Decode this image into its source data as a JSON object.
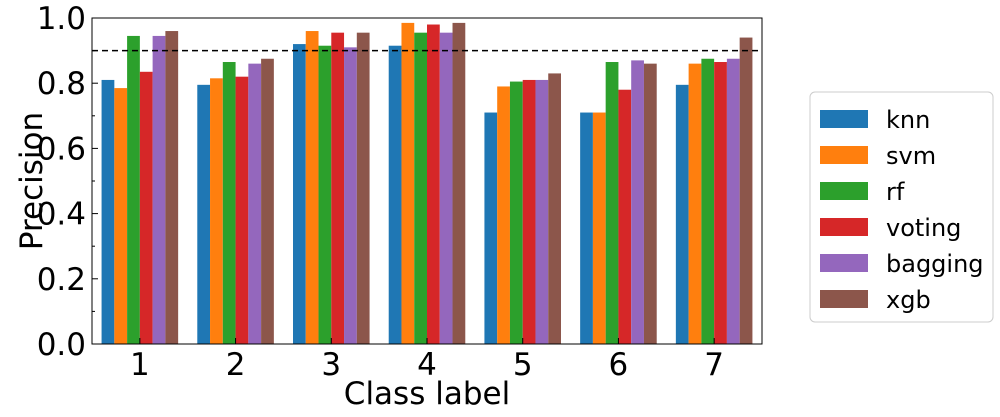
{
  "chart_data": {
    "type": "bar",
    "title": "",
    "xlabel": "Class label",
    "ylabel": "Precision",
    "categories": [
      "1",
      "2",
      "3",
      "4",
      "5",
      "6",
      "7"
    ],
    "ylim": [
      0,
      1.0
    ],
    "yticks": [
      "0.0",
      "0.2",
      "0.4",
      "0.6",
      "0.8",
      "1.0"
    ],
    "reference_line": {
      "y": 0.9,
      "style": "dashed",
      "color": "#000000"
    },
    "grid": false,
    "legend": {
      "placement": "right"
    },
    "series": [
      {
        "name": "knn",
        "color": "#1f77b4",
        "values": [
          0.81,
          0.795,
          0.92,
          0.915,
          0.71,
          0.71,
          0.795
        ]
      },
      {
        "name": "svm",
        "color": "#ff7f0e",
        "values": [
          0.785,
          0.815,
          0.96,
          0.985,
          0.79,
          0.71,
          0.86
        ]
      },
      {
        "name": "rf",
        "color": "#2ca02c",
        "values": [
          0.945,
          0.865,
          0.915,
          0.955,
          0.805,
          0.865,
          0.875
        ]
      },
      {
        "name": "voting",
        "color": "#d62728",
        "values": [
          0.835,
          0.82,
          0.955,
          0.98,
          0.81,
          0.78,
          0.865
        ]
      },
      {
        "name": "bagging",
        "color": "#9467bd",
        "values": [
          0.945,
          0.86,
          0.91,
          0.955,
          0.81,
          0.87,
          0.875
        ]
      },
      {
        "name": "xgb",
        "color": "#8c564b",
        "values": [
          0.96,
          0.875,
          0.955,
          0.985,
          0.83,
          0.86,
          0.94
        ]
      }
    ]
  }
}
